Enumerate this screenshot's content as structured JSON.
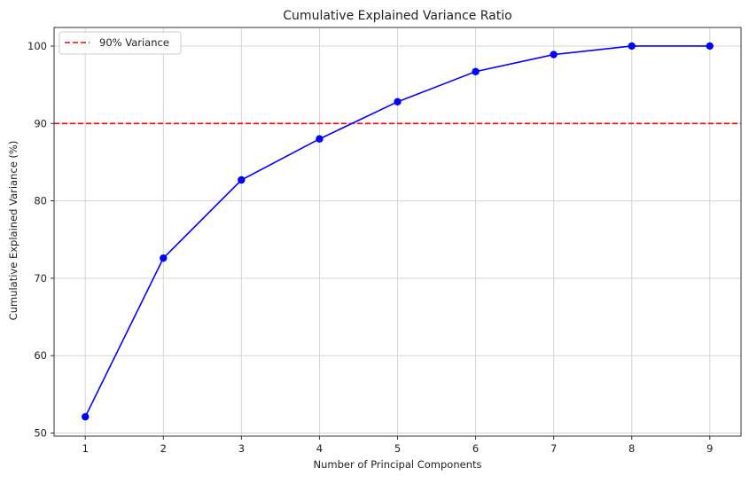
{
  "chart_data": {
    "type": "line",
    "title": "Cumulative Explained Variance Ratio",
    "xlabel": "Number of Principal Components",
    "ylabel": "Cumulative Explained Variance (%)",
    "x": [
      1,
      2,
      3,
      4,
      5,
      6,
      7,
      8,
      9
    ],
    "xlim": [
      0.6,
      9.4
    ],
    "ylim": [
      49.6,
      102.4
    ],
    "xticks": [
      1,
      2,
      3,
      4,
      5,
      6,
      7,
      8,
      9
    ],
    "yticks": [
      50,
      60,
      70,
      80,
      90,
      100
    ],
    "grid": true,
    "series": [
      {
        "values": [
          52.1,
          72.6,
          82.7,
          88.0,
          92.8,
          96.7,
          98.9,
          100.0,
          100.0
        ],
        "color": "#0000ff",
        "marker": "circle"
      }
    ],
    "reference_lines": [
      {
        "axis": "y",
        "value": 90,
        "label": "90% Variance",
        "color": "#ff0000",
        "style": "dashed"
      }
    ],
    "legend": {
      "position": "top-left",
      "entries": [
        {
          "label": "90% Variance",
          "color": "#ff0000",
          "style": "dashed"
        }
      ]
    }
  }
}
